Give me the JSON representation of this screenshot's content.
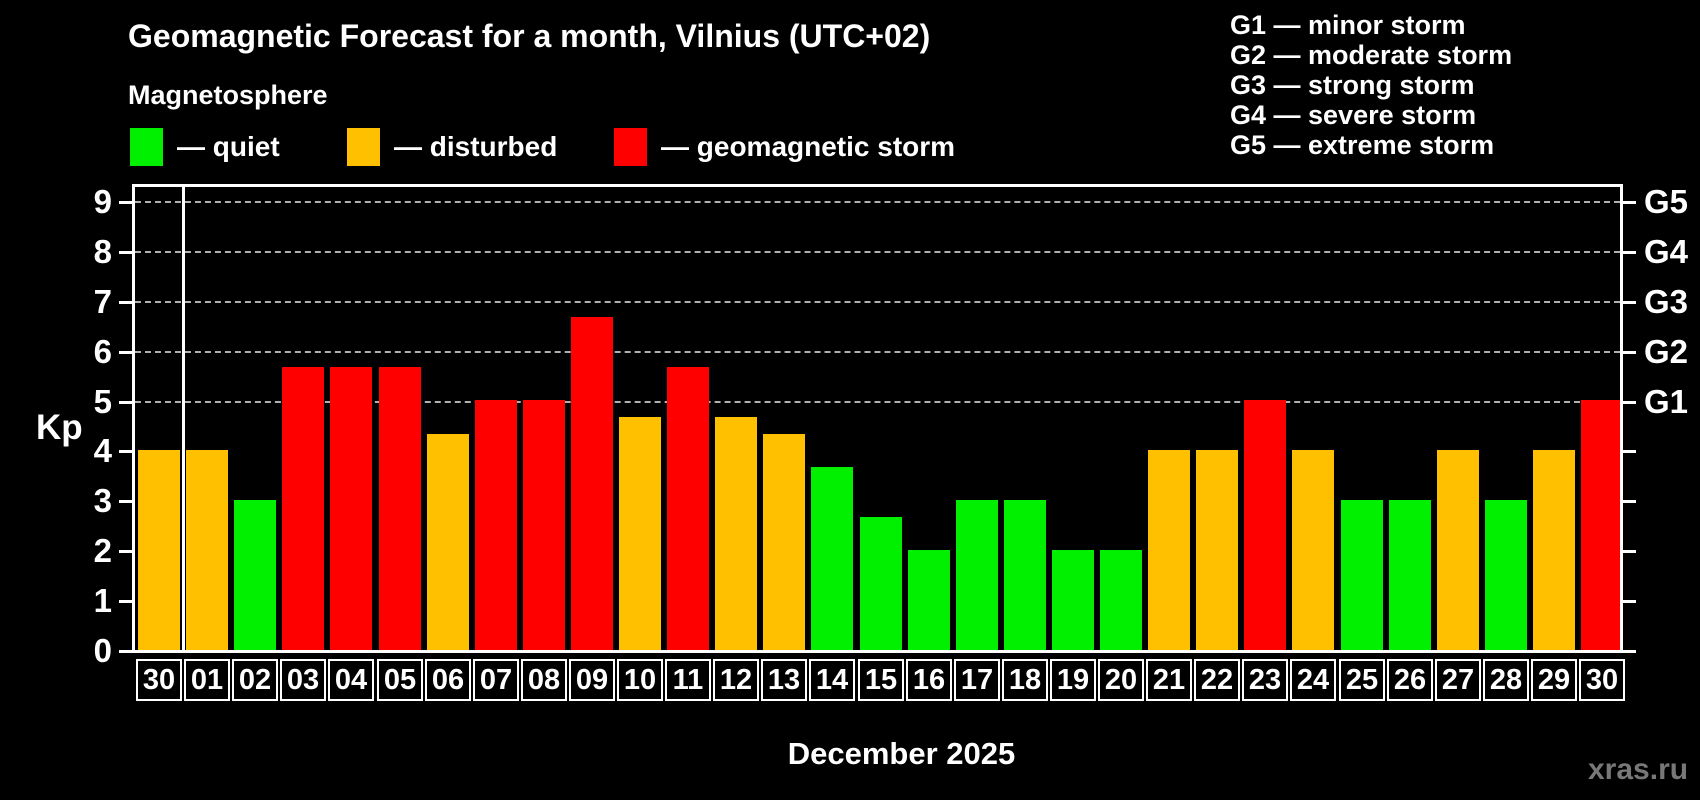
{
  "header": {
    "title": "Geomagnetic Forecast for a month, Vilnius (UTC+02)",
    "subtitle": "Magnetosphere",
    "legend": [
      {
        "key": "quiet",
        "label": "— quiet",
        "color": "#00f000"
      },
      {
        "key": "disturbed",
        "label": "— disturbed",
        "color": "#ffc000"
      },
      {
        "key": "storm",
        "label": "— geomagnetic storm",
        "color": "#ff0000"
      }
    ],
    "g_scale_legend": [
      "G1 — minor storm",
      "G2 — moderate storm",
      "G3 — strong storm",
      "G4 — severe storm",
      "G5 — extreme storm"
    ]
  },
  "chart_data": {
    "type": "bar",
    "title": "Geomagnetic Forecast for a month, Vilnius (UTC+02)",
    "ylabel": "Kp",
    "xlabel": "December 2025",
    "categories": [
      "30",
      "01",
      "02",
      "03",
      "04",
      "05",
      "06",
      "07",
      "08",
      "09",
      "10",
      "11",
      "12",
      "13",
      "14",
      "15",
      "16",
      "17",
      "18",
      "19",
      "20",
      "21",
      "22",
      "23",
      "24",
      "25",
      "26",
      "27",
      "28",
      "29",
      "30"
    ],
    "values": [
      4,
      4,
      3,
      5.67,
      5.67,
      5.67,
      4.33,
      5,
      5,
      6.67,
      4.67,
      5.67,
      4.67,
      4.33,
      3.67,
      2.67,
      2,
      3,
      3,
      2,
      2,
      4,
      4,
      5,
      4,
      3,
      3,
      4,
      3,
      4,
      5
    ],
    "statuses": [
      "disturbed",
      "disturbed",
      "quiet",
      "storm",
      "storm",
      "storm",
      "disturbed",
      "storm",
      "storm",
      "storm",
      "disturbed",
      "storm",
      "disturbed",
      "disturbed",
      "quiet",
      "quiet",
      "quiet",
      "quiet",
      "quiet",
      "quiet",
      "quiet",
      "disturbed",
      "disturbed",
      "storm",
      "disturbed",
      "quiet",
      "quiet",
      "disturbed",
      "quiet",
      "disturbed",
      "storm"
    ],
    "colors": {
      "quiet": "#00f000",
      "disturbed": "#ffc000",
      "storm": "#ff0000"
    },
    "yticks": [
      0,
      1,
      2,
      3,
      4,
      5,
      6,
      7,
      8,
      9
    ],
    "ylim": [
      0,
      9.4
    ],
    "gridlines": [
      5,
      6,
      7,
      8,
      9
    ],
    "grid_style": "dashed",
    "right_axis_labels": [
      {
        "value": 5,
        "label": "G1"
      },
      {
        "value": 6,
        "label": "G2"
      },
      {
        "value": 7,
        "label": "G3"
      },
      {
        "value": 8,
        "label": "G4"
      },
      {
        "value": 9,
        "label": "G5"
      }
    ],
    "separator_after_index": 0,
    "legend_position": "top-left"
  },
  "footer": {
    "watermark": "xras.ru"
  }
}
